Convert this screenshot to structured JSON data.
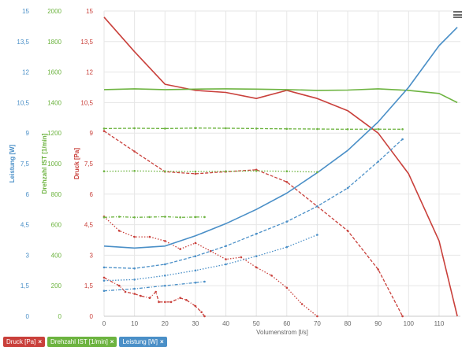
{
  "chart_data": {
    "type": "line",
    "xlabel": "Volumenstrom [l/s]",
    "xlim": [
      0,
      117
    ],
    "xticks": [
      "0",
      "10",
      "20",
      "30",
      "40",
      "50",
      "60",
      "70",
      "80",
      "90",
      "100",
      "110"
    ],
    "axes": [
      {
        "id": "leistung",
        "title": "Leistung [W]",
        "color": "#4a8fc7",
        "range": [
          0,
          15
        ],
        "ticks": [
          "0",
          "1,5",
          "3",
          "4,5",
          "6",
          "7,5",
          "9",
          "10,5",
          "12",
          "13,5",
          "15"
        ]
      },
      {
        "id": "drehzahl",
        "title": "Drehzahl IST [1/min]",
        "color": "#6cb33f",
        "range": [
          0,
          2000
        ],
        "ticks": [
          "0",
          "200",
          "400",
          "600",
          "800",
          "1000",
          "1200",
          "1400",
          "1600",
          "1800",
          "2000"
        ]
      },
      {
        "id": "druck",
        "title": "Druck [Pa]",
        "color": "#c9403b",
        "range": [
          0,
          15
        ],
        "ticks": [
          "0",
          "1,5",
          "3",
          "4,5",
          "6",
          "7,5",
          "9",
          "10,5",
          "12",
          "13,5",
          "15"
        ]
      }
    ],
    "grid": true,
    "legend_position": "bottom-left",
    "series": [
      {
        "name": "Druck [Pa]",
        "axis": "druck",
        "color": "#c9403b",
        "style": "solid",
        "points": [
          [
            0,
            14.7
          ],
          [
            10,
            13.0
          ],
          [
            20,
            11.4
          ],
          [
            30,
            11.1
          ],
          [
            40,
            11.0
          ],
          [
            50,
            10.7
          ],
          [
            60,
            11.1
          ],
          [
            70,
            10.7
          ],
          [
            80,
            10.1
          ],
          [
            90,
            9.0
          ],
          [
            100,
            7.0
          ],
          [
            110,
            3.7
          ],
          [
            116,
            0
          ]
        ]
      },
      {
        "name": "Druck [Pa]",
        "axis": "druck",
        "color": "#c9403b",
        "style": "dashed",
        "points": [
          [
            0,
            9.1
          ],
          [
            10,
            8.1
          ],
          [
            20,
            7.1
          ],
          [
            30,
            7.0
          ],
          [
            40,
            7.1
          ],
          [
            50,
            7.2
          ],
          [
            60,
            6.6
          ],
          [
            70,
            5.4
          ],
          [
            80,
            4.2
          ],
          [
            90,
            2.3
          ],
          [
            98,
            0
          ]
        ]
      },
      {
        "name": "Druck [Pa]",
        "axis": "druck",
        "color": "#c9403b",
        "style": "dotted",
        "points": [
          [
            0,
            4.9
          ],
          [
            5,
            4.2
          ],
          [
            10,
            3.9
          ],
          [
            15,
            3.9
          ],
          [
            20,
            3.7
          ],
          [
            25,
            3.3
          ],
          [
            30,
            3.6
          ],
          [
            35,
            3.2
          ],
          [
            40,
            2.8
          ],
          [
            45,
            2.9
          ],
          [
            50,
            2.4
          ],
          [
            55,
            2.0
          ],
          [
            60,
            1.4
          ],
          [
            65,
            0.6
          ],
          [
            70,
            0
          ]
        ]
      },
      {
        "name": "Druck [Pa]",
        "axis": "druck",
        "color": "#c9403b",
        "style": "dashdot",
        "points": [
          [
            0,
            1.9
          ],
          [
            5,
            1.5
          ],
          [
            7,
            1.2
          ],
          [
            10,
            1.1
          ],
          [
            12,
            1.0
          ],
          [
            15,
            0.9
          ],
          [
            17,
            1.2
          ],
          [
            18,
            0.7
          ],
          [
            20,
            0.7
          ],
          [
            22,
            0.7
          ],
          [
            25,
            0.9
          ],
          [
            27,
            0.8
          ],
          [
            30,
            0.5
          ],
          [
            32,
            0.2
          ],
          [
            33,
            0
          ]
        ]
      },
      {
        "name": "Drehzahl IST [1/min]",
        "axis": "drehzahl",
        "color": "#6cb33f",
        "style": "solid",
        "points": [
          [
            0,
            1485
          ],
          [
            10,
            1490
          ],
          [
            20,
            1485
          ],
          [
            30,
            1488
          ],
          [
            40,
            1490
          ],
          [
            50,
            1488
          ],
          [
            60,
            1485
          ],
          [
            70,
            1480
          ],
          [
            80,
            1482
          ],
          [
            90,
            1490
          ],
          [
            100,
            1480
          ],
          [
            110,
            1460
          ],
          [
            116,
            1400
          ]
        ]
      },
      {
        "name": "Drehzahl IST [1/min]",
        "axis": "drehzahl",
        "color": "#6cb33f",
        "style": "dashed",
        "points": [
          [
            0,
            1230
          ],
          [
            10,
            1232
          ],
          [
            20,
            1230
          ],
          [
            30,
            1233
          ],
          [
            40,
            1232
          ],
          [
            50,
            1230
          ],
          [
            60,
            1228
          ],
          [
            70,
            1227
          ],
          [
            80,
            1225
          ],
          [
            90,
            1226
          ],
          [
            98,
            1225
          ]
        ]
      },
      {
        "name": "Drehzahl IST [1/min]",
        "axis": "drehzahl",
        "color": "#6cb33f",
        "style": "dotted",
        "points": [
          [
            0,
            950
          ],
          [
            10,
            952
          ],
          [
            20,
            950
          ],
          [
            30,
            948
          ],
          [
            40,
            950
          ],
          [
            50,
            952
          ],
          [
            60,
            950
          ],
          [
            70,
            945
          ]
        ]
      },
      {
        "name": "Drehzahl IST [1/min]",
        "axis": "drehzahl",
        "color": "#6cb33f",
        "style": "dashdot",
        "points": [
          [
            0,
            648
          ],
          [
            5,
            652
          ],
          [
            10,
            648
          ],
          [
            15,
            650
          ],
          [
            20,
            652
          ],
          [
            25,
            648
          ],
          [
            30,
            650
          ],
          [
            33,
            650
          ]
        ]
      },
      {
        "name": "Leistung [W]",
        "axis": "leistung",
        "color": "#4a8fc7",
        "style": "solid",
        "points": [
          [
            0,
            3.45
          ],
          [
            10,
            3.35
          ],
          [
            20,
            3.45
          ],
          [
            30,
            3.95
          ],
          [
            40,
            4.55
          ],
          [
            50,
            5.25
          ],
          [
            60,
            6.05
          ],
          [
            70,
            7.05
          ],
          [
            80,
            8.15
          ],
          [
            90,
            9.55
          ],
          [
            100,
            11.25
          ],
          [
            110,
            13.3
          ],
          [
            116,
            14.2
          ]
        ]
      },
      {
        "name": "Leistung [W]",
        "axis": "leistung",
        "color": "#4a8fc7",
        "style": "dashed",
        "points": [
          [
            0,
            2.4
          ],
          [
            10,
            2.35
          ],
          [
            20,
            2.55
          ],
          [
            30,
            2.95
          ],
          [
            40,
            3.45
          ],
          [
            50,
            4.05
          ],
          [
            60,
            4.65
          ],
          [
            70,
            5.4
          ],
          [
            80,
            6.3
          ],
          [
            90,
            7.6
          ],
          [
            98,
            8.7
          ]
        ]
      },
      {
        "name": "Leistung [W]",
        "axis": "leistung",
        "color": "#4a8fc7",
        "style": "dotted",
        "points": [
          [
            0,
            1.75
          ],
          [
            10,
            1.8
          ],
          [
            20,
            2.0
          ],
          [
            30,
            2.25
          ],
          [
            40,
            2.55
          ],
          [
            50,
            2.95
          ],
          [
            60,
            3.4
          ],
          [
            70,
            4.0
          ]
        ]
      },
      {
        "name": "Leistung [W]",
        "axis": "leistung",
        "color": "#4a8fc7",
        "style": "dashdot",
        "points": [
          [
            0,
            1.25
          ],
          [
            10,
            1.35
          ],
          [
            20,
            1.5
          ],
          [
            30,
            1.65
          ],
          [
            33,
            1.7
          ]
        ]
      }
    ]
  },
  "legend": [
    {
      "label": "Druck [Pa]",
      "color": "#c9403b"
    },
    {
      "label": "Drehzahl IST [1/min]",
      "color": "#6cb33f"
    },
    {
      "label": "Leistung [W]",
      "color": "#4a8fc7"
    }
  ],
  "remove_glyph": "×"
}
